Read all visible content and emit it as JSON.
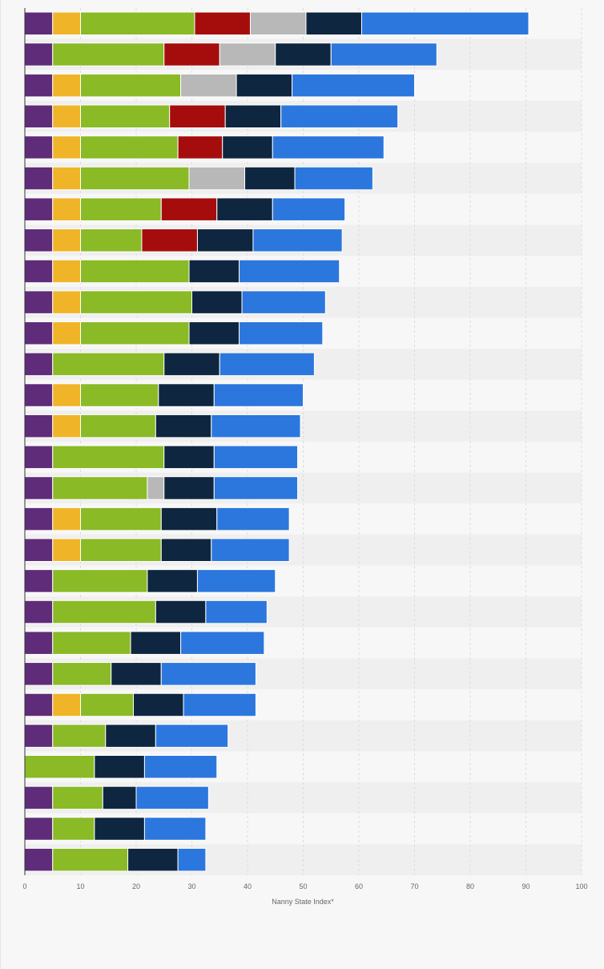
{
  "chart_data": {
    "type": "bar",
    "orientation": "horizontal",
    "stacked": true,
    "xlabel": "Nanny State Index*",
    "xlim": [
      0,
      100
    ],
    "xticks": [
      0,
      10,
      20,
      30,
      40,
      50,
      60,
      70,
      80,
      90,
      100
    ],
    "grid": true,
    "legend": "none",
    "category_count": 28,
    "series": [
      {
        "color": "#5f2c79",
        "values": [
          5,
          5,
          5,
          5,
          5,
          5,
          5,
          5,
          5,
          5,
          5,
          5,
          5,
          5,
          5,
          5,
          5,
          5,
          5,
          5,
          5,
          5,
          5,
          5,
          0,
          5,
          5,
          5
        ]
      },
      {
        "color": "#f0b429",
        "values": [
          5,
          0,
          5,
          5,
          5,
          5,
          5,
          5,
          5,
          5,
          5,
          0,
          5,
          5,
          0,
          0,
          5,
          5,
          0,
          0,
          0,
          0,
          5,
          0,
          0,
          0,
          0,
          0
        ]
      },
      {
        "color": "#8aba26",
        "values": [
          20.5,
          20,
          18,
          16,
          17.5,
          19.5,
          14.5,
          11,
          19.5,
          20,
          19.5,
          20,
          14,
          13.5,
          20,
          17,
          14.5,
          14.5,
          17,
          18.5,
          14,
          10.5,
          9.5,
          9.5,
          12.5,
          9,
          7.5,
          13.5
        ]
      },
      {
        "color": "#a50d0d",
        "values": [
          10,
          10,
          0,
          10,
          8,
          0,
          10,
          10,
          0,
          0,
          0,
          0,
          0,
          0,
          0,
          0,
          0,
          0,
          0,
          0,
          0,
          0,
          0,
          0,
          0,
          0,
          0,
          0
        ]
      },
      {
        "color": "#b8b8b8",
        "values": [
          10,
          10,
          10,
          0,
          0,
          10,
          0,
          0,
          0,
          0,
          0,
          0,
          0,
          0,
          0,
          3,
          0,
          0,
          0,
          0,
          0,
          0,
          0,
          0,
          0,
          0,
          0,
          0
        ]
      },
      {
        "color": "#0f2640",
        "values": [
          10,
          10,
          10,
          10,
          9,
          9,
          10,
          10,
          9,
          9,
          9,
          10,
          10,
          10,
          9,
          9,
          10,
          9,
          9,
          9,
          9,
          9,
          9,
          9,
          9,
          6,
          9,
          9
        ]
      },
      {
        "color": "#2c77dd",
        "values": [
          30,
          19,
          22,
          21,
          20,
          14,
          13,
          16,
          18,
          15,
          15,
          17,
          16,
          16,
          15,
          15,
          13,
          14,
          14,
          11,
          15,
          17,
          13,
          13,
          13,
          13,
          11,
          5
        ]
      }
    ]
  }
}
